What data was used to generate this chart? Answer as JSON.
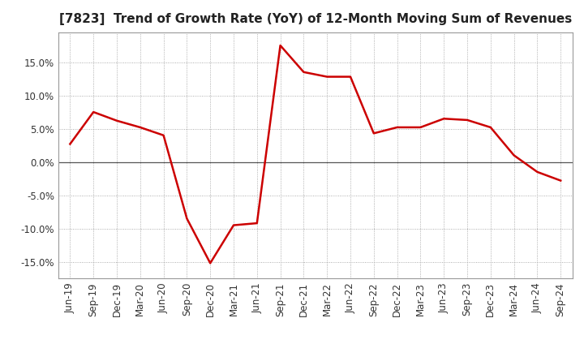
{
  "title": "[7823]  Trend of Growth Rate (YoY) of 12-Month Moving Sum of Revenues",
  "line_color": "#CC0000",
  "background_color": "#FFFFFF",
  "plot_bg_color": "#FFFFFF",
  "grid_color": "#999999",
  "zero_line_color": "#555555",
  "ylim": [
    -0.175,
    0.195
  ],
  "yticks": [
    -0.15,
    -0.1,
    -0.05,
    0.0,
    0.05,
    0.1,
    0.15
  ],
  "x_labels": [
    "Jun-19",
    "Sep-19",
    "Dec-19",
    "Mar-20",
    "Jun-20",
    "Sep-20",
    "Dec-20",
    "Mar-21",
    "Jun-21",
    "Sep-21",
    "Dec-21",
    "Mar-22",
    "Jun-22",
    "Sep-22",
    "Dec-22",
    "Mar-23",
    "Jun-23",
    "Sep-23",
    "Dec-23",
    "Mar-24",
    "Jun-24",
    "Sep-24"
  ],
  "data_y": [
    0.027,
    0.075,
    0.062,
    0.052,
    0.04,
    -0.085,
    -0.152,
    -0.095,
    -0.092,
    0.175,
    0.135,
    0.128,
    0.128,
    0.043,
    0.052,
    0.052,
    0.065,
    0.063,
    0.052,
    0.01,
    -0.015,
    -0.028
  ],
  "title_fontsize": 11,
  "tick_fontsize": 8.5,
  "line_width": 1.8
}
